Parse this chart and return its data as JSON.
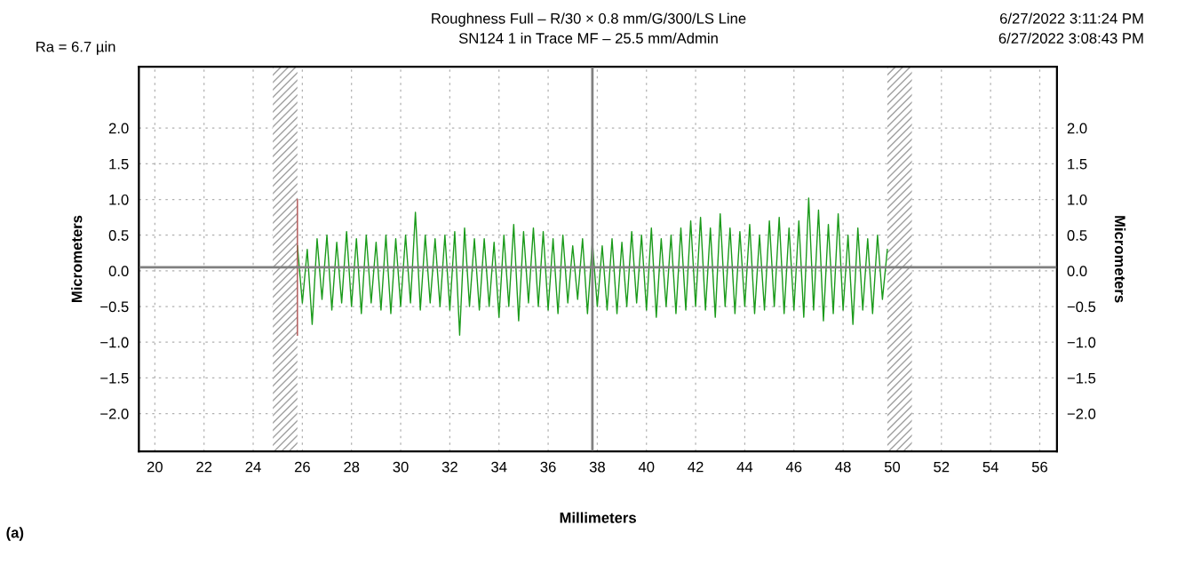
{
  "chart_data": {
    "type": "line",
    "title": "Roughness Full – R/30 × 0.8 mm/G/300/LS Line",
    "subtitle": "SN124 1 in Trace MF – 25.5 mm/Admin",
    "xlabel": "Millimeters",
    "ylabel": "Micrometers",
    "y2label": "Micrometers",
    "annotations": [
      "Ra = 6.7 µin",
      "6/27/2022 3:11:24 PM",
      "6/27/2022 3:08:43 PM",
      "(a)"
    ],
    "series": [
      {
        "color": "#1a9a1a",
        "x": [
          25.8,
          26.0,
          26.2,
          26.4,
          26.6,
          26.8,
          27.0,
          27.2,
          27.4,
          27.6,
          27.8,
          28.0,
          28.2,
          28.4,
          28.6,
          28.8,
          29.0,
          29.2,
          29.4,
          29.6,
          29.8,
          30.0,
          30.2,
          30.4,
          30.6,
          30.8,
          31.0,
          31.2,
          31.4,
          31.6,
          31.8,
          32.0,
          32.2,
          32.4,
          32.6,
          32.8,
          33.0,
          33.2,
          33.4,
          33.6,
          33.8,
          34.0,
          34.2,
          34.4,
          34.6,
          34.8,
          35.0,
          35.2,
          35.4,
          35.6,
          35.8,
          36.0,
          36.2,
          36.4,
          36.6,
          36.8,
          37.0,
          37.2,
          37.4,
          37.6,
          37.8,
          38.0,
          38.2,
          38.4,
          38.6,
          38.8,
          39.0,
          39.2,
          39.4,
          39.6,
          39.8,
          40.0,
          40.2,
          40.4,
          40.6,
          40.8,
          41.0,
          41.2,
          41.4,
          41.6,
          41.8,
          42.0,
          42.2,
          42.4,
          42.6,
          42.8,
          43.0,
          43.2,
          43.4,
          43.6,
          43.8,
          44.0,
          44.2,
          44.4,
          44.6,
          44.8,
          45.0,
          45.2,
          45.4,
          45.6,
          45.8,
          46.0,
          46.2,
          46.4,
          46.6,
          46.8,
          47.0,
          47.2,
          47.4,
          47.6,
          47.8,
          48.0,
          48.2,
          48.4,
          48.6,
          48.8,
          49.0,
          49.2,
          49.4,
          49.6,
          49.8
        ],
        "values": [
          0.35,
          -0.45,
          0.3,
          -0.75,
          0.45,
          -0.4,
          0.5,
          -0.55,
          0.4,
          -0.45,
          0.55,
          -0.5,
          0.45,
          -0.6,
          0.5,
          -0.45,
          0.4,
          -0.55,
          0.5,
          -0.6,
          0.45,
          -0.5,
          0.5,
          -0.45,
          0.82,
          -0.55,
          0.5,
          -0.45,
          0.45,
          -0.5,
          0.5,
          -0.55,
          0.55,
          -0.9,
          0.6,
          -0.5,
          0.45,
          -0.55,
          0.45,
          -0.5,
          0.4,
          -0.65,
          0.5,
          -0.5,
          0.65,
          -0.7,
          0.55,
          -0.45,
          0.6,
          -0.5,
          0.55,
          -0.55,
          0.45,
          -0.6,
          0.5,
          -0.45,
          0.35,
          -0.4,
          0.45,
          -0.6,
          0.4,
          -0.5,
          0.35,
          -0.55,
          0.45,
          -0.6,
          0.4,
          -0.5,
          0.55,
          -0.45,
          0.5,
          -0.55,
          0.6,
          -0.65,
          0.45,
          -0.5,
          0.5,
          -0.6,
          0.6,
          -0.55,
          0.7,
          -0.5,
          0.75,
          -0.55,
          0.6,
          -0.65,
          0.8,
          -0.5,
          0.6,
          -0.6,
          0.55,
          -0.5,
          0.65,
          -0.6,
          0.5,
          -0.55,
          0.7,
          -0.5,
          0.75,
          -0.6,
          0.6,
          -0.55,
          0.7,
          -0.65,
          1.02,
          -0.55,
          0.85,
          -0.7,
          0.65,
          -0.6,
          0.8,
          -0.55,
          0.5,
          -0.75,
          0.6,
          -0.55,
          0.45,
          -0.6,
          0.5,
          -0.4,
          0.3
        ]
      },
      {
        "color": "#b05050",
        "x": [
          25.8,
          25.8
        ],
        "values": [
          -0.9,
          1.0
        ]
      }
    ],
    "bands": [
      {
        "axis": "x",
        "from": 24.8,
        "to": 25.8,
        "color": "#a0a0a0"
      },
      {
        "axis": "x",
        "from": 49.8,
        "to": 50.8,
        "color": "#a0a0a0"
      }
    ],
    "ref_lines": [
      {
        "axis": "y",
        "value": 0.05,
        "color": "#808080"
      },
      {
        "axis": "x",
        "value": 37.8,
        "color": "#808080"
      }
    ],
    "xlim": [
      19.35,
      56.7
    ],
    "xticks": [
      20,
      22,
      24,
      26,
      28,
      30,
      32,
      34,
      36,
      38,
      40,
      42,
      44,
      46,
      48,
      50,
      52,
      54,
      56
    ],
    "ylim": [
      -2.53,
      2.86
    ],
    "yticks": [
      {
        "value": -2,
        "label": "−2.0"
      },
      {
        "value": -1.5,
        "label": "−1.5"
      },
      {
        "value": -1,
        "label": "−1.0"
      },
      {
        "value": -0.5,
        "label": "−0.5"
      },
      {
        "value": 0,
        "label": "0.0"
      },
      {
        "value": 0.5,
        "label": "0.5"
      },
      {
        "value": 1,
        "label": "1.0"
      },
      {
        "value": 1.5,
        "label": "1.5"
      },
      {
        "value": 2,
        "label": "2.0"
      }
    ],
    "y2lim": [
      -2.53,
      2.86
    ],
    "y2ticks": [
      {
        "value": -2,
        "label": "−2.0"
      },
      {
        "value": -1.5,
        "label": "−1.5"
      },
      {
        "value": -1,
        "label": "−1.0"
      },
      {
        "value": -0.5,
        "label": "−0.5"
      },
      {
        "value": 0,
        "label": "0.0"
      },
      {
        "value": 0.5,
        "label": "0.5"
      },
      {
        "value": 1,
        "label": "1.0"
      },
      {
        "value": 1.5,
        "label": "1.5"
      },
      {
        "value": 2,
        "label": "2.0"
      }
    ],
    "grid": true,
    "line_style": "solid"
  }
}
